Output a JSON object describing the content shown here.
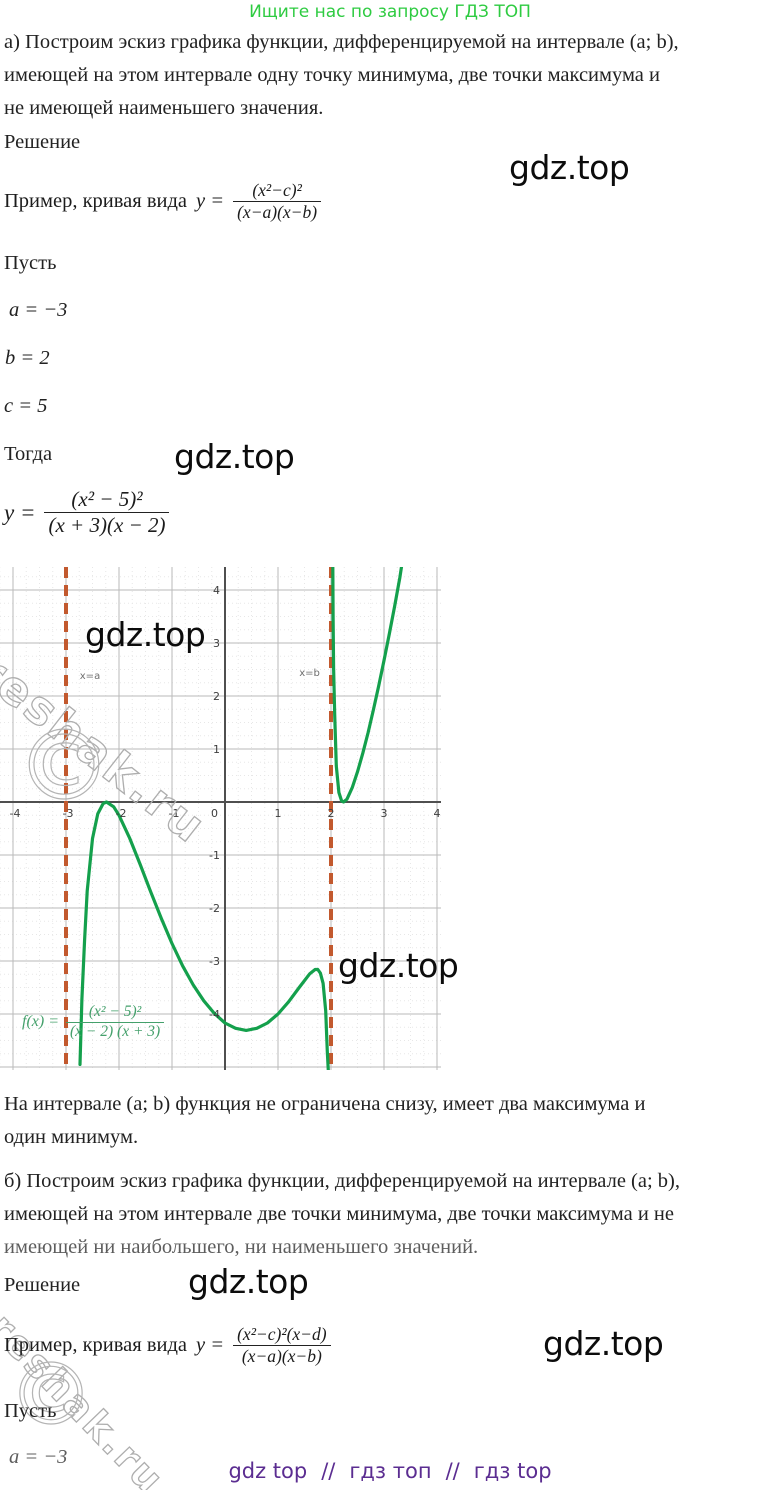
{
  "header": {
    "promo": "Ищите нас по запросу ГДЗ ТОП"
  },
  "part_a": {
    "problem_lines": [
      "а) Построим эскиз графика функции, дифференцируемой на интервале (a; b),",
      "имеющей на этом интервале одну точку минимума, две точки максимума и",
      "не имеющей наименьшего значения."
    ],
    "solution_label": "Решение",
    "example_prefix": "Пример, кривая вида",
    "formula_general": {
      "lhs": "y =",
      "num": "(x²−c)²",
      "den": "(x−a)(x−b)"
    },
    "let_label": "Пусть",
    "assignments": [
      "a = −3",
      "b = 2",
      "c = 5"
    ],
    "then_label": "Тогда",
    "formula_specific": {
      "lhs": "y =",
      "num": "(x² − 5)²",
      "den": "(x + 3)(x − 2)"
    },
    "conclusion_lines": [
      "На интервале (a; b) функция не ограничена снизу, имеет два максимума и",
      "один минимум."
    ]
  },
  "part_b": {
    "problem_lines": [
      "б) Построим эскиз графика функции, дифференцируемой на интервале (a; b),",
      "имеющей на этом интервале две точки минимума, две точки максимума и не",
      "имеющей ни наибольшего, ни наименьшего значений."
    ],
    "solution_label": "Решение",
    "example_prefix": "Пример, кривая вида",
    "formula_general": {
      "lhs": "y =",
      "num": "(x²−c)²(x−d)",
      "den": "(x−a)(x−b)"
    },
    "let_label": "Пусть",
    "assignments": [
      "a = −3"
    ]
  },
  "watermarks": {
    "gdz_text": "gdz.top",
    "reshak_text": "reshak.ru",
    "copyright_glyph": "©"
  },
  "footer": {
    "links": [
      "gdz top",
      "гдз топ",
      "гдз top"
    ],
    "separator": "//",
    "color": "#5b2d91"
  },
  "chart_data": {
    "type": "line",
    "title": "",
    "xlabel": "",
    "ylabel": "",
    "xlim": [
      -4.25,
      4.07
    ],
    "ylim": [
      -5.06,
      4.43
    ],
    "grid": true,
    "x_ticks": [
      -4,
      -3,
      -2,
      -1,
      0,
      1,
      2,
      3,
      4
    ],
    "y_ticks": [
      -4,
      -3,
      -2,
      -1,
      1,
      2,
      3,
      4
    ],
    "zero_label": "0",
    "asymptotes": [
      {
        "x": -3,
        "label": "x=a",
        "label_pos": [
          -2.74,
          2.32
        ]
      },
      {
        "x": 2,
        "label": "x=b",
        "label_pos": [
          1.4,
          2.38
        ]
      }
    ],
    "function_label": {
      "lhs": "f(x) =",
      "num": "(x² − 5)²",
      "den": "(x − 2) (x + 3)"
    },
    "colors": {
      "curve": "#14a04c",
      "asymptote": "#c2592e",
      "grid_major": "#bababa",
      "grid_minor": "#e7e7e7",
      "axis": "#4f4f4f",
      "tick_text": "#3d3d3d",
      "label_text": "#6f6f6f"
    },
    "series": [
      {
        "name": "branch-left",
        "points": [
          [
            -2.736,
            -4.95
          ],
          [
            -2.7,
            -3.72
          ],
          [
            -2.65,
            -2.6
          ],
          [
            -2.6,
            -1.68
          ],
          [
            -2.5,
            -0.69
          ],
          [
            -2.4,
            -0.22
          ],
          [
            -2.3,
            -0.03
          ],
          [
            -2.236,
            0
          ],
          [
            -2.1,
            -0.09
          ],
          [
            -2.0,
            -0.25
          ],
          [
            -1.8,
            -0.68
          ],
          [
            -1.6,
            -1.18
          ],
          [
            -1.4,
            -1.7
          ],
          [
            -1.2,
            -2.2
          ],
          [
            -1.0,
            -2.67
          ],
          [
            -0.8,
            -3.09
          ],
          [
            -0.6,
            -3.45
          ],
          [
            -0.4,
            -3.75
          ],
          [
            -0.2,
            -3.99
          ],
          [
            0,
            -4.17
          ],
          [
            0.2,
            -4.27
          ],
          [
            0.4,
            -4.31
          ],
          [
            0.6,
            -4.27
          ],
          [
            0.8,
            -4.17
          ],
          [
            1.0,
            -4.0
          ],
          [
            1.2,
            -3.77
          ],
          [
            1.4,
            -3.5
          ],
          [
            1.6,
            -3.24
          ],
          [
            1.7,
            -3.16
          ],
          [
            1.75,
            -3.16
          ],
          [
            1.8,
            -3.23
          ],
          [
            1.85,
            -3.42
          ],
          [
            1.9,
            -3.94
          ],
          [
            1.93,
            -4.71
          ],
          [
            1.95,
            -5.1
          ]
        ]
      },
      {
        "name": "branch-right",
        "points": [
          [
            2.034,
            4.5
          ],
          [
            2.04,
            3.49
          ],
          [
            2.05,
            2.52
          ],
          [
            2.07,
            1.65
          ],
          [
            2.1,
            0.68
          ],
          [
            2.15,
            0.18
          ],
          [
            2.2,
            0.02
          ],
          [
            2.236,
            0
          ],
          [
            2.3,
            0.05
          ],
          [
            2.4,
            0.27
          ],
          [
            2.5,
            0.57
          ],
          [
            2.6,
            0.92
          ],
          [
            2.7,
            1.31
          ],
          [
            2.8,
            1.74
          ],
          [
            2.9,
            2.19
          ],
          [
            3.0,
            2.67
          ],
          [
            3.1,
            3.17
          ],
          [
            3.2,
            3.69
          ],
          [
            3.3,
            4.24
          ],
          [
            3.34,
            4.5
          ]
        ]
      }
    ]
  }
}
